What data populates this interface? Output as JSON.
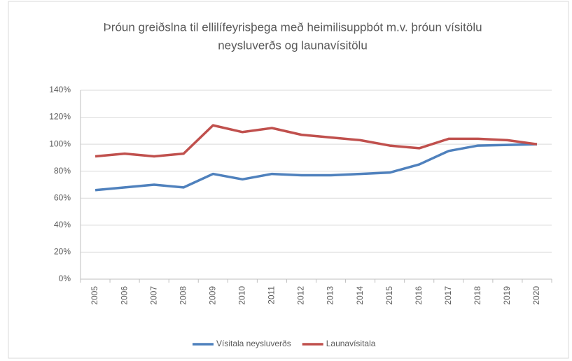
{
  "chart_data": {
    "type": "line",
    "title": [
      "Þróun greiðslna til ellilífeyrisþega með heimilisuppbót m.v. þróun vísitölu",
      "neysluverðs og launavísitölu"
    ],
    "categories": [
      "2005",
      "2006",
      "2007",
      "2008",
      "2009",
      "2010",
      "2011",
      "2012",
      "2013",
      "2014",
      "2015",
      "2016",
      "2017",
      "2018",
      "2019",
      "2020"
    ],
    "series": [
      {
        "name": "Vísitala neysluverðs",
        "color": "#4f81bd",
        "values": [
          66,
          68,
          70,
          68,
          78,
          74,
          78,
          77,
          77,
          78,
          79,
          85,
          95,
          99,
          99.5,
          100
        ]
      },
      {
        "name": "Launavísitala",
        "color": "#c0504d",
        "values": [
          91,
          93,
          91,
          93,
          114,
          109,
          112,
          107,
          105,
          103,
          99,
          97,
          104,
          104,
          103,
          100
        ]
      }
    ],
    "ylim": [
      0,
      140
    ],
    "yticks": [
      {
        "value": 0,
        "label": "0%"
      },
      {
        "value": 20,
        "label": "20%"
      },
      {
        "value": 40,
        "label": "40%"
      },
      {
        "value": 60,
        "label": "60%"
      },
      {
        "value": 80,
        "label": "80%"
      },
      {
        "value": 100,
        "label": "100%"
      },
      {
        "value": 120,
        "label": "120%"
      },
      {
        "value": 140,
        "label": "140%"
      }
    ],
    "grid": true,
    "legend": "bottom"
  }
}
